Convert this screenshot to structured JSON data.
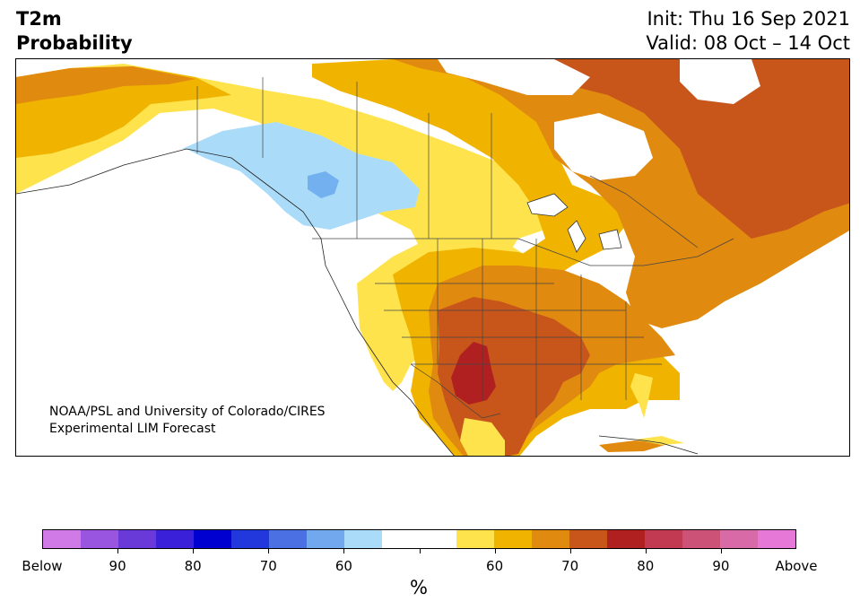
{
  "header": {
    "title_line1": "T2m",
    "title_line2": "Probability",
    "init": "Init: Thu 16 Sep 2021",
    "valid": "Valid: 08 Oct – 14 Oct"
  },
  "map": {
    "credit_line1": "NOAA/PSL and University of Colorado/CIRES",
    "credit_line2": "Experimental LIM Forecast",
    "colors": {
      "above_55": "#ffe34d",
      "above_60": "#f0b400",
      "above_65": "#e08a10",
      "above_70": "#c8561a",
      "above_75": "#b02020",
      "below_55": "#aadcfa",
      "below_60": "#73b0f0",
      "neutral": "#ffffff",
      "land_outline": "#222222",
      "lakes": "#333333"
    }
  },
  "colorbar": {
    "colors": [
      "#d07ae8",
      "#9a55e0",
      "#6a3ad8",
      "#3a20d8",
      "#0000d0",
      "#2238dc",
      "#4a70e4",
      "#72a8ee",
      "#aadcfa",
      "#ffffff",
      "#ffffff",
      "#ffe34d",
      "#f0b400",
      "#e08a10",
      "#c8561a",
      "#b02020",
      "#c23a52",
      "#cc5278",
      "#d86aa8",
      "#e678d8"
    ],
    "labels": [
      "Below",
      "90",
      "80",
      "70",
      "60",
      "",
      "60",
      "70",
      "80",
      "90",
      "Above"
    ],
    "unit": "%"
  }
}
